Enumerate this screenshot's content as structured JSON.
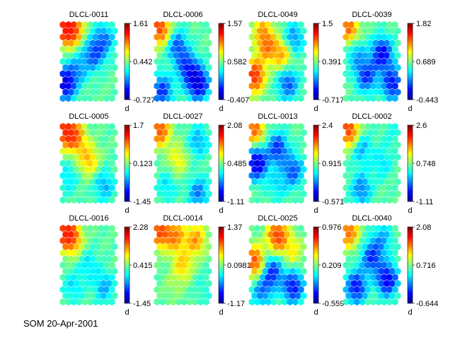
{
  "figure": {
    "footer": "SOM 20-Apr-2001",
    "colorbar_label": "d"
  },
  "chart_data": [
    {
      "type": "heatmap",
      "title": "DLCL-0011",
      "colorbar": {
        "max": "1.61",
        "mid": "0.442",
        "min": "-0.727"
      },
      "hotspots": [
        {
          "col": 0.05,
          "row": 0.05,
          "v": 1.0
        },
        {
          "col": 0.2,
          "row": 0.05,
          "v": 0.7
        },
        {
          "col": 0.05,
          "row": 0.8,
          "v": -0.9
        },
        {
          "col": 0.6,
          "row": 0.4,
          "v": -0.5
        },
        {
          "col": 0.8,
          "row": 0.2,
          "v": -0.4
        },
        {
          "col": 0.3,
          "row": 0.6,
          "v": -0.3
        }
      ]
    },
    {
      "type": "heatmap",
      "title": "DLCL-0006",
      "colorbar": {
        "max": "1.57",
        "mid": "0.582",
        "min": "-0.407"
      },
      "hotspots": [
        {
          "col": 0.05,
          "row": 0.05,
          "v": 0.9
        },
        {
          "col": 0.4,
          "row": 0.3,
          "v": -0.5
        },
        {
          "col": 0.8,
          "row": 0.8,
          "v": -0.9
        },
        {
          "col": 0.1,
          "row": 0.9,
          "v": -0.6
        },
        {
          "col": 0.6,
          "row": 0.6,
          "v": -0.6
        }
      ]
    },
    {
      "type": "heatmap",
      "title": "DLCL-0049",
      "colorbar": {
        "max": "1.5",
        "mid": "0.391",
        "min": "-0.717"
      },
      "hotspots": [
        {
          "col": 0.05,
          "row": 0.7,
          "v": 1.0
        },
        {
          "col": 0.3,
          "row": 0.3,
          "v": 0.6
        },
        {
          "col": 0.6,
          "row": 0.4,
          "v": 0.5
        },
        {
          "col": 0.8,
          "row": 0.2,
          "v": -0.4
        },
        {
          "col": 0.7,
          "row": 0.8,
          "v": -0.5
        },
        {
          "col": 0.2,
          "row": 0.05,
          "v": 0.4
        }
      ]
    },
    {
      "type": "heatmap",
      "title": "DLCL-0039",
      "colorbar": {
        "max": "1.82",
        "mid": "0.689",
        "min": "-0.443"
      },
      "hotspots": [
        {
          "col": 0.05,
          "row": 0.05,
          "v": 0.7
        },
        {
          "col": 0.7,
          "row": 0.4,
          "v": -0.8
        },
        {
          "col": 0.4,
          "row": 0.7,
          "v": -0.6
        },
        {
          "col": 0.9,
          "row": 0.8,
          "v": -0.7
        },
        {
          "col": 0.2,
          "row": 0.4,
          "v": -0.3
        }
      ]
    },
    {
      "type": "heatmap",
      "title": "DLCL-0005",
      "colorbar": {
        "max": "1.7",
        "mid": "0.123",
        "min": "-1.45"
      },
      "hotspots": [
        {
          "col": 0.05,
          "row": 0.05,
          "v": 1.0
        },
        {
          "col": 0.25,
          "row": 0.15,
          "v": 0.6
        },
        {
          "col": 0.5,
          "row": 0.45,
          "v": 0.45
        },
        {
          "col": 0.8,
          "row": 0.8,
          "v": -0.3
        },
        {
          "col": 0.1,
          "row": 0.7,
          "v": -0.2
        }
      ]
    },
    {
      "type": "heatmap",
      "title": "DLCL-0027",
      "colorbar": {
        "max": "2.08",
        "mid": "0.485",
        "min": "-1.11"
      },
      "hotspots": [
        {
          "col": 0.05,
          "row": 0.05,
          "v": 0.8
        },
        {
          "col": 0.4,
          "row": 0.45,
          "v": 0.3
        },
        {
          "col": 0.8,
          "row": 0.2,
          "v": -0.3
        },
        {
          "col": 0.8,
          "row": 0.9,
          "v": -0.4
        },
        {
          "col": 0.2,
          "row": 0.8,
          "v": -0.2
        }
      ]
    },
    {
      "type": "heatmap",
      "title": "DLCL-0013",
      "colorbar": {
        "max": "2.4",
        "mid": "0.915",
        "min": "-0.571"
      },
      "hotspots": [
        {
          "col": 0.05,
          "row": 0.05,
          "v": 0.7
        },
        {
          "col": 0.1,
          "row": 0.5,
          "v": -0.9
        },
        {
          "col": 0.5,
          "row": 0.3,
          "v": -0.6
        },
        {
          "col": 0.8,
          "row": 0.6,
          "v": -0.5
        },
        {
          "col": 0.5,
          "row": 0.8,
          "v": -0.2
        }
      ]
    },
    {
      "type": "heatmap",
      "title": "DLCL-0002",
      "colorbar": {
        "max": "2.6",
        "mid": "0.748",
        "min": "-1.11"
      },
      "hotspots": [
        {
          "col": 0.05,
          "row": 0.05,
          "v": 0.9
        },
        {
          "col": 0.3,
          "row": 0.3,
          "v": -0.3
        },
        {
          "col": 0.7,
          "row": 0.5,
          "v": -0.2
        },
        {
          "col": 0.3,
          "row": 0.85,
          "v": -0.4
        },
        {
          "col": 0.9,
          "row": 0.1,
          "v": -0.1
        }
      ]
    },
    {
      "type": "heatmap",
      "title": "DLCL-0016",
      "colorbar": {
        "max": "2.28",
        "mid": "0.415",
        "min": "-1.45"
      },
      "hotspots": [
        {
          "col": 0.05,
          "row": 0.05,
          "v": 1.0
        },
        {
          "col": 0.2,
          "row": 0.15,
          "v": 0.5
        },
        {
          "col": 0.5,
          "row": 0.5,
          "v": -0.2
        },
        {
          "col": 0.8,
          "row": 0.8,
          "v": -0.3
        },
        {
          "col": 0.2,
          "row": 0.8,
          "v": -0.2
        }
      ]
    },
    {
      "type": "heatmap",
      "title": "DLCL-0014",
      "colorbar": {
        "max": "1.37",
        "mid": "0.0981",
        "min": "-1.17"
      },
      "hotspots": [
        {
          "col": 0.05,
          "row": 0.05,
          "v": 0.8
        },
        {
          "col": 0.35,
          "row": 0.1,
          "v": 0.6
        },
        {
          "col": 0.75,
          "row": 0.15,
          "v": 0.55
        },
        {
          "col": 0.5,
          "row": 0.5,
          "v": 0.4
        },
        {
          "col": 0.3,
          "row": 0.8,
          "v": 0.1
        },
        {
          "col": 0.9,
          "row": 0.8,
          "v": -0.1
        }
      ]
    },
    {
      "type": "heatmap",
      "title": "DLCL-0025",
      "colorbar": {
        "max": "0.976",
        "mid": "0.209",
        "min": "-0.559"
      },
      "hotspots": [
        {
          "col": 0.5,
          "row": 0.1,
          "v": 0.9
        },
        {
          "col": 0.05,
          "row": 0.45,
          "v": 0.8
        },
        {
          "col": 0.8,
          "row": 0.3,
          "v": 0.3
        },
        {
          "col": 0.4,
          "row": 0.6,
          "v": -0.6
        },
        {
          "col": 0.8,
          "row": 0.8,
          "v": -0.7
        },
        {
          "col": 0.2,
          "row": 0.85,
          "v": -0.4
        }
      ]
    },
    {
      "type": "heatmap",
      "title": "DLCL-0040",
      "colorbar": {
        "max": "2.08",
        "mid": "0.716",
        "min": "-0.644"
      },
      "hotspots": [
        {
          "col": 0.05,
          "row": 0.05,
          "v": 0.7
        },
        {
          "col": 0.5,
          "row": 0.4,
          "v": -0.6
        },
        {
          "col": 0.2,
          "row": 0.8,
          "v": -0.7
        },
        {
          "col": 0.8,
          "row": 0.7,
          "v": -0.8
        },
        {
          "col": 0.7,
          "row": 0.15,
          "v": -0.3
        }
      ]
    }
  ]
}
